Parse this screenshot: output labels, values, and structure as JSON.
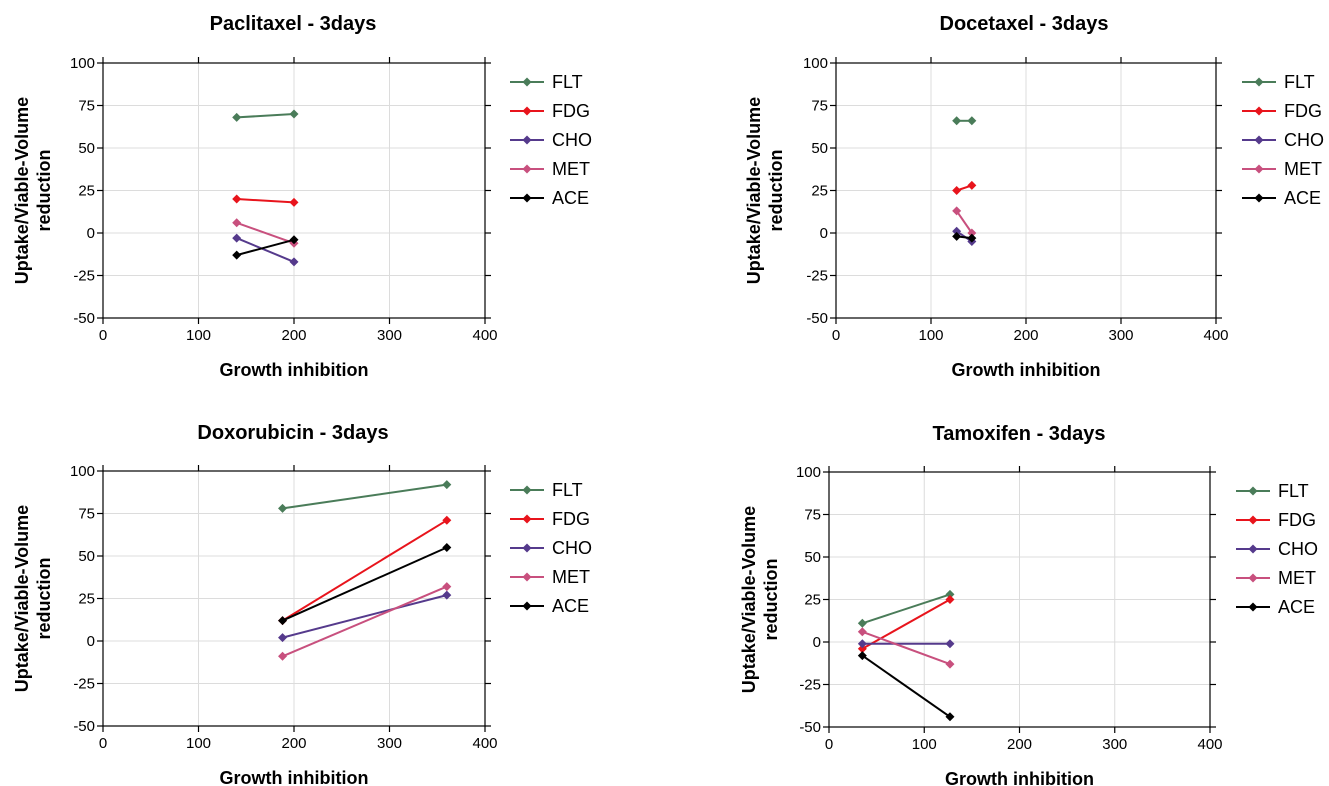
{
  "chart_data": [
    {
      "type": "line",
      "title": "Paclitaxel - 3days",
      "xlabel": "Growth inhibition",
      "ylabel": "Uptake/Viable-Volume\nreduction",
      "xlim": [
        0,
        400
      ],
      "ylim": [
        -50,
        100
      ],
      "xticks": [
        0,
        100,
        200,
        300,
        400
      ],
      "yticks": [
        -50,
        -25,
        0,
        25,
        50,
        75,
        100
      ],
      "grid": true,
      "legend": "right",
      "series": [
        {
          "name": "FLT",
          "color": "#4a7c59",
          "points": [
            [
              140,
              68
            ],
            [
              200,
              70
            ]
          ]
        },
        {
          "name": "FDG",
          "color": "#e8141c",
          "points": [
            [
              140,
              20
            ],
            [
              200,
              18
            ]
          ]
        },
        {
          "name": "CHO",
          "color": "#553a8c",
          "points": [
            [
              140,
              -3
            ],
            [
              200,
              -17
            ]
          ]
        },
        {
          "name": "MET",
          "color": "#c8507e",
          "points": [
            [
              140,
              6
            ],
            [
              200,
              -6
            ]
          ]
        },
        {
          "name": "ACE",
          "color": "#000000",
          "points": [
            [
              140,
              -13
            ],
            [
              200,
              -4
            ]
          ]
        }
      ]
    },
    {
      "type": "line",
      "title": "Docetaxel - 3days",
      "xlabel": "Growth inhibition",
      "ylabel": "Uptake/Viable-Volume\nreduction",
      "xlim": [
        0,
        400
      ],
      "ylim": [
        -50,
        100
      ],
      "xticks": [
        0,
        100,
        200,
        300,
        400
      ],
      "yticks": [
        -50,
        -25,
        0,
        25,
        50,
        75,
        100
      ],
      "grid": true,
      "legend": "right",
      "series": [
        {
          "name": "FLT",
          "color": "#4a7c59",
          "points": [
            [
              127,
              66
            ],
            [
              143,
              66
            ]
          ]
        },
        {
          "name": "FDG",
          "color": "#e8141c",
          "points": [
            [
              127,
              25
            ],
            [
              143,
              28
            ]
          ]
        },
        {
          "name": "CHO",
          "color": "#553a8c",
          "points": [
            [
              127,
              1
            ],
            [
              143,
              -5
            ]
          ]
        },
        {
          "name": "MET",
          "color": "#c8507e",
          "points": [
            [
              127,
              13
            ],
            [
              143,
              0
            ]
          ]
        },
        {
          "name": "ACE",
          "color": "#000000",
          "points": [
            [
              127,
              -2
            ],
            [
              143,
              -3
            ]
          ]
        }
      ]
    },
    {
      "type": "line",
      "title": "Doxorubicin - 3days",
      "xlabel": "Growth inhibition",
      "ylabel": "Uptake/Viable-Volume\nreduction",
      "xlim": [
        0,
        400
      ],
      "ylim": [
        -50,
        100
      ],
      "xticks": [
        0,
        100,
        200,
        300,
        400
      ],
      "yticks": [
        -50,
        -25,
        0,
        25,
        50,
        75,
        100
      ],
      "grid": true,
      "legend": "right",
      "series": [
        {
          "name": "FLT",
          "color": "#4a7c59",
          "points": [
            [
              188,
              78
            ],
            [
              360,
              92
            ]
          ]
        },
        {
          "name": "FDG",
          "color": "#e8141c",
          "points": [
            [
              188,
              12
            ],
            [
              360,
              71
            ]
          ]
        },
        {
          "name": "CHO",
          "color": "#553a8c",
          "points": [
            [
              188,
              2
            ],
            [
              360,
              27
            ]
          ]
        },
        {
          "name": "MET",
          "color": "#c8507e",
          "points": [
            [
              188,
              -9
            ],
            [
              360,
              32
            ]
          ]
        },
        {
          "name": "ACE",
          "color": "#000000",
          "points": [
            [
              188,
              12
            ],
            [
              360,
              55
            ]
          ]
        }
      ]
    },
    {
      "type": "line",
      "title": "Tamoxifen - 3days",
      "xlabel": "Growth inhibition",
      "ylabel": "Uptake/Viable-Volume\nreduction",
      "xlim": [
        0,
        400
      ],
      "ylim": [
        -50,
        100
      ],
      "xticks": [
        0,
        100,
        200,
        300,
        400
      ],
      "yticks": [
        -50,
        -25,
        0,
        25,
        50,
        75,
        100
      ],
      "grid": true,
      "legend": "right",
      "series": [
        {
          "name": "FLT",
          "color": "#4a7c59",
          "points": [
            [
              35,
              11
            ],
            [
              127,
              28
            ]
          ]
        },
        {
          "name": "FDG",
          "color": "#e8141c",
          "points": [
            [
              35,
              -4
            ],
            [
              127,
              25
            ]
          ]
        },
        {
          "name": "CHO",
          "color": "#553a8c",
          "points": [
            [
              35,
              -1
            ],
            [
              127,
              -1
            ]
          ]
        },
        {
          "name": "MET",
          "color": "#c8507e",
          "points": [
            [
              35,
              6
            ],
            [
              127,
              -13
            ]
          ]
        },
        {
          "name": "ACE",
          "color": "#000000",
          "points": [
            [
              35,
              -8
            ],
            [
              127,
              -44
            ]
          ]
        }
      ]
    }
  ]
}
